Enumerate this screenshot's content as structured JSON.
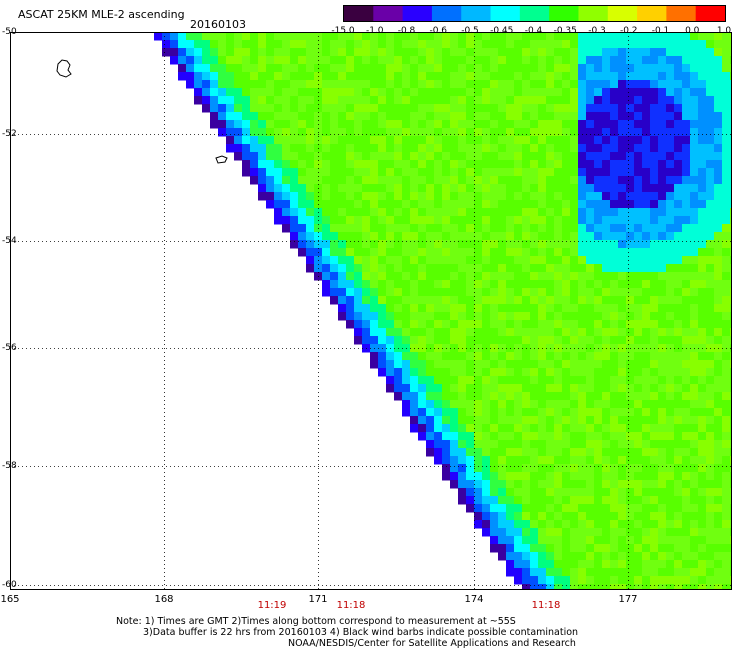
{
  "header": {
    "title": "ASCAT 25KM MLE-2 ascending",
    "date": "20160103"
  },
  "colorbar": {
    "labels": [
      "-15.0",
      "-1.0",
      "-0.8",
      "-0.6",
      "-0.5",
      "-0.45",
      "-0.4",
      "-0.35",
      "-0.3",
      "-0.2",
      "-0.1",
      "0.0",
      "1.0"
    ],
    "colors": [
      "#3a0040",
      "#6a00a8",
      "#2a00ff",
      "#0070ff",
      "#00b8ff",
      "#00ffff",
      "#00ff90",
      "#30ff00",
      "#90ff00",
      "#d8ff00",
      "#ffd000",
      "#ff7000",
      "#ff0000"
    ]
  },
  "axes": {
    "lat_labels": [
      "-50",
      "-52",
      "-54",
      "-56",
      "-58",
      "-60"
    ],
    "lon_labels": [
      "165",
      "168",
      "171",
      "174",
      "177"
    ]
  },
  "time_labels": [
    "11:19",
    "11:18",
    "11:18"
  ],
  "notes": {
    "line1": "Note: 1) Times are GMT 2)Times along bottom correspond to measurement at ~55S",
    "line2": "3)Data buffer is 22 hrs from 20160103 4) Black wind barbs indicate possible contamination",
    "line3": "NOAA/NESDIS/Center for Satellite Applications and Research"
  }
}
